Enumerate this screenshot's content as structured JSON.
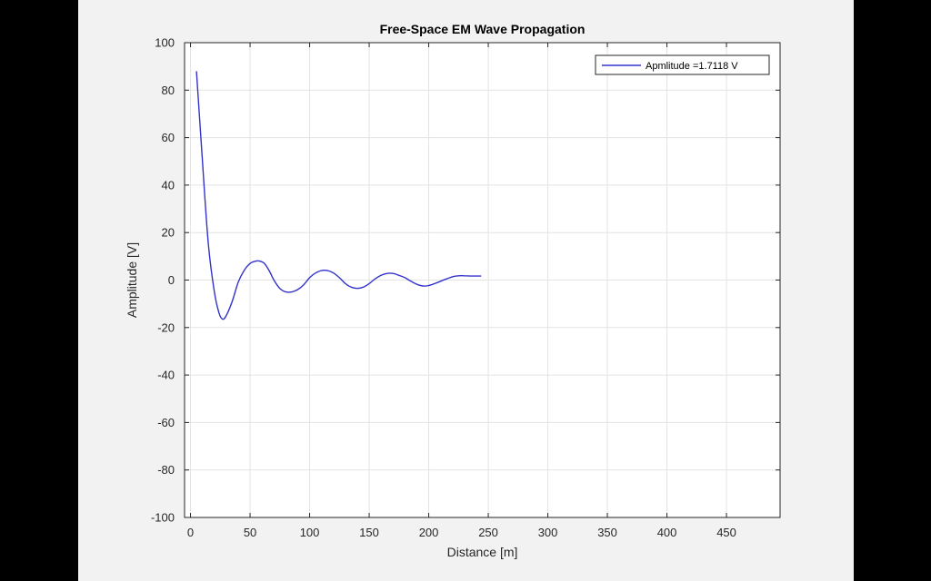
{
  "chart_data": {
    "type": "line",
    "title": "Free-Space EM Wave Propagation",
    "xlabel": "Distance [m]",
    "ylabel": "Amplitude [V]",
    "xlim": [
      -5,
      495
    ],
    "ylim": [
      -100,
      100
    ],
    "xticks": [
      0,
      50,
      100,
      150,
      200,
      250,
      300,
      350,
      400,
      450
    ],
    "yticks": [
      -100,
      -80,
      -60,
      -40,
      -20,
      0,
      20,
      40,
      60,
      80,
      100
    ],
    "grid": true,
    "legend_position": "top-right",
    "series": [
      {
        "name": "Apmlitude =1.7118 V",
        "color": "#3333cc",
        "x": [
          5,
          10,
          15,
          20,
          24,
          27,
          30,
          35,
          40,
          45,
          50,
          55,
          58,
          62,
          66,
          70,
          75,
          80,
          85,
          90,
          95,
          100,
          105,
          110,
          115,
          120,
          125,
          130,
          135,
          140,
          145,
          150,
          155,
          160,
          165,
          170,
          175,
          180,
          185,
          190,
          195,
          200,
          205,
          210,
          215,
          220,
          225,
          230,
          235,
          240,
          244
        ],
        "y": [
          88,
          50,
          15,
          -5,
          -14,
          -16.5,
          -15,
          -9,
          -1,
          4,
          7,
          8,
          8,
          7,
          4,
          0,
          -3.5,
          -5,
          -5,
          -4,
          -2,
          1,
          3,
          4,
          4,
          3,
          1,
          -1.5,
          -3,
          -3.5,
          -3,
          -1.5,
          0.5,
          2,
          2.8,
          2.8,
          2,
          1,
          -0.5,
          -1.8,
          -2.5,
          -2.3,
          -1.5,
          -0.5,
          0.5,
          1.4,
          1.8,
          1.8,
          1.7,
          1.7,
          1.7
        ]
      }
    ]
  }
}
